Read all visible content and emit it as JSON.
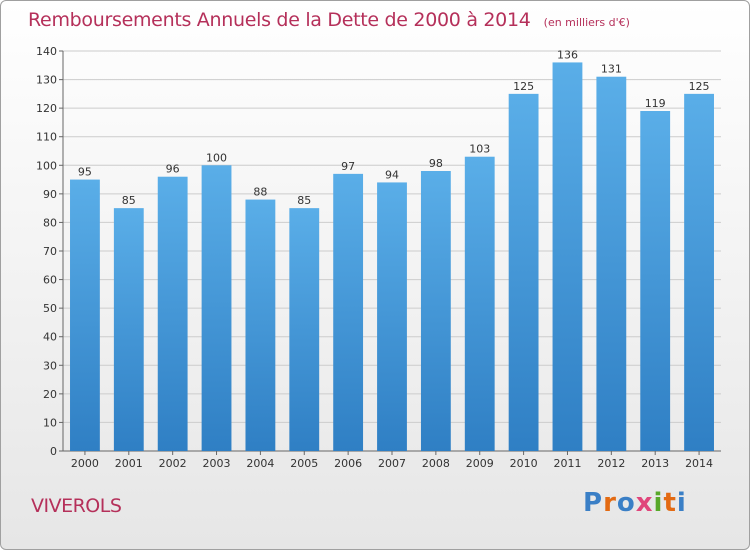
{
  "chart_data": {
    "type": "bar",
    "title": "Remboursements Annuels de la Dette de 2000 à 2014",
    "subtitle": "(en milliers d'€)",
    "categories": [
      "2000",
      "2001",
      "2002",
      "2003",
      "2004",
      "2005",
      "2006",
      "2007",
      "2008",
      "2009",
      "2010",
      "2011",
      "2012",
      "2013",
      "2014"
    ],
    "values": [
      95,
      85,
      96,
      100,
      88,
      85,
      97,
      94,
      98,
      103,
      125,
      136,
      131,
      119,
      125
    ],
    "ylim": [
      0,
      140
    ],
    "yticks": [
      0,
      10,
      20,
      30,
      40,
      50,
      60,
      70,
      80,
      90,
      100,
      110,
      120,
      130,
      140
    ],
    "grid": true,
    "bar_color_top": "#5aaee8",
    "bar_color_bottom": "#2f7fc4"
  },
  "footer": {
    "commune": "VIVEROLS",
    "logo_text": "Proxiti"
  },
  "colors": {
    "title": "#b5305a",
    "grid": "#cccccc"
  }
}
